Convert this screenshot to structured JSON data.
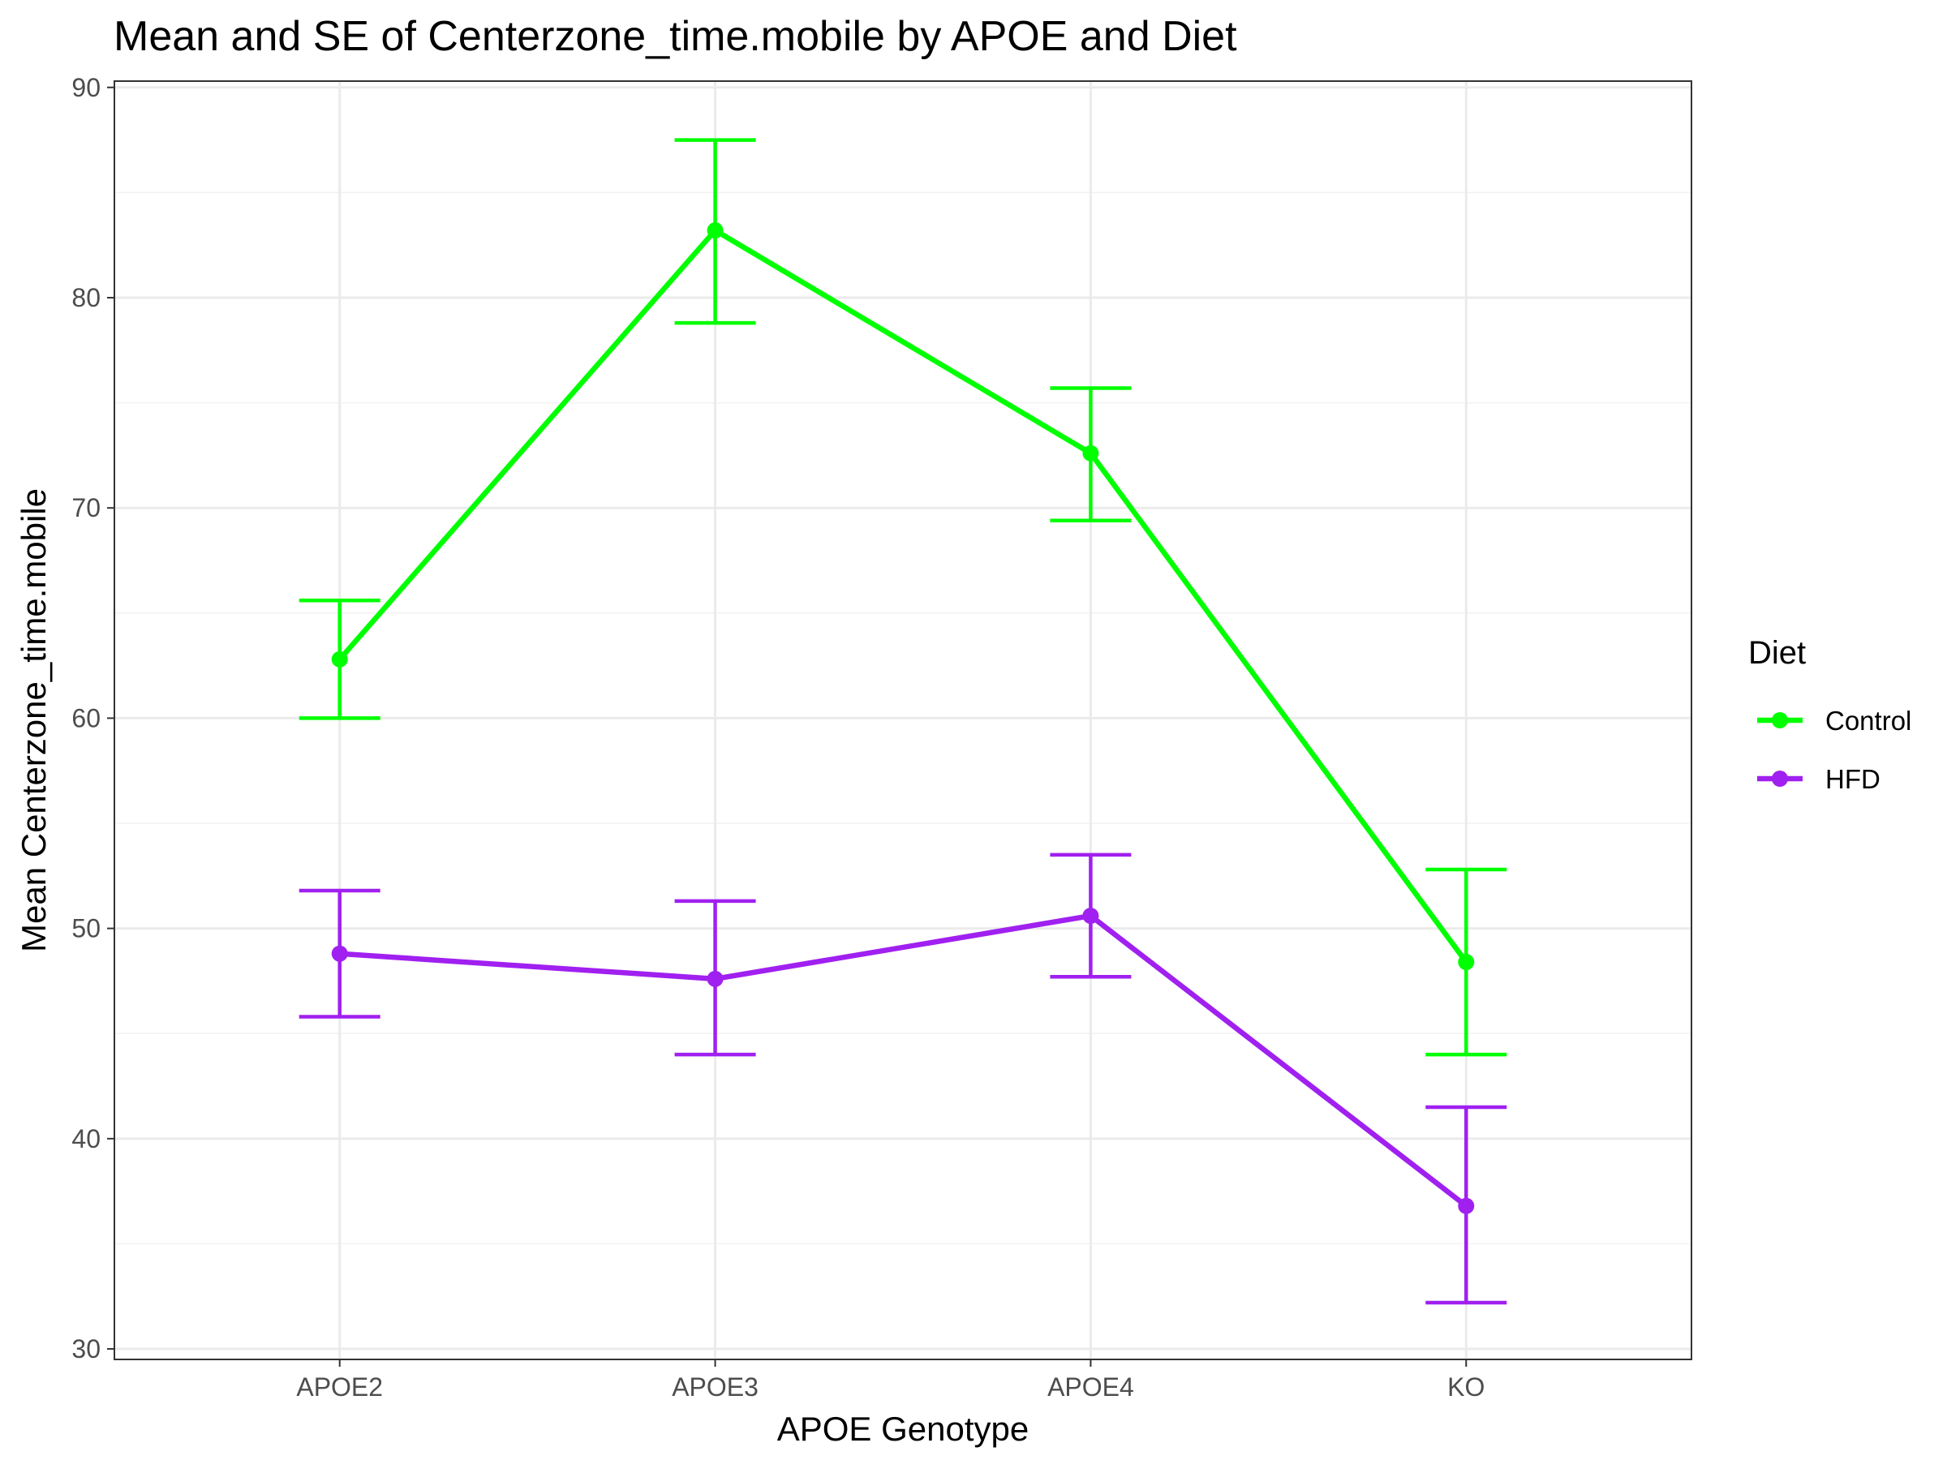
{
  "chart_data": {
    "type": "line",
    "title": "Mean and SE of Centerzone_time.mobile by APOE and Diet",
    "xlabel": "APOE Genotype",
    "ylabel": "Mean Centerzone_time.mobile",
    "categories": [
      "APOE2",
      "APOE3",
      "APOE4",
      "KO"
    ],
    "ylim": [
      29.5,
      90.3
    ],
    "yticks": [
      30,
      40,
      50,
      60,
      70,
      80,
      90
    ],
    "ytick_labels": [
      "30",
      "40",
      "50",
      "60",
      "70",
      "80",
      "90"
    ],
    "grid": true,
    "legend": {
      "title": "Diet",
      "position": "right"
    },
    "series": [
      {
        "name": "Control",
        "color": "#00ff00",
        "values": [
          62.8,
          83.2,
          72.6,
          48.4
        ],
        "lower": [
          60.0,
          78.8,
          69.4,
          44.0
        ],
        "upper": [
          65.6,
          87.5,
          75.7,
          52.8
        ]
      },
      {
        "name": "HFD",
        "color": "#a020f0",
        "values": [
          48.8,
          47.6,
          50.6,
          36.8
        ],
        "lower": [
          45.8,
          44.0,
          47.7,
          32.2
        ],
        "upper": [
          51.8,
          51.3,
          53.5,
          41.5
        ]
      }
    ]
  }
}
